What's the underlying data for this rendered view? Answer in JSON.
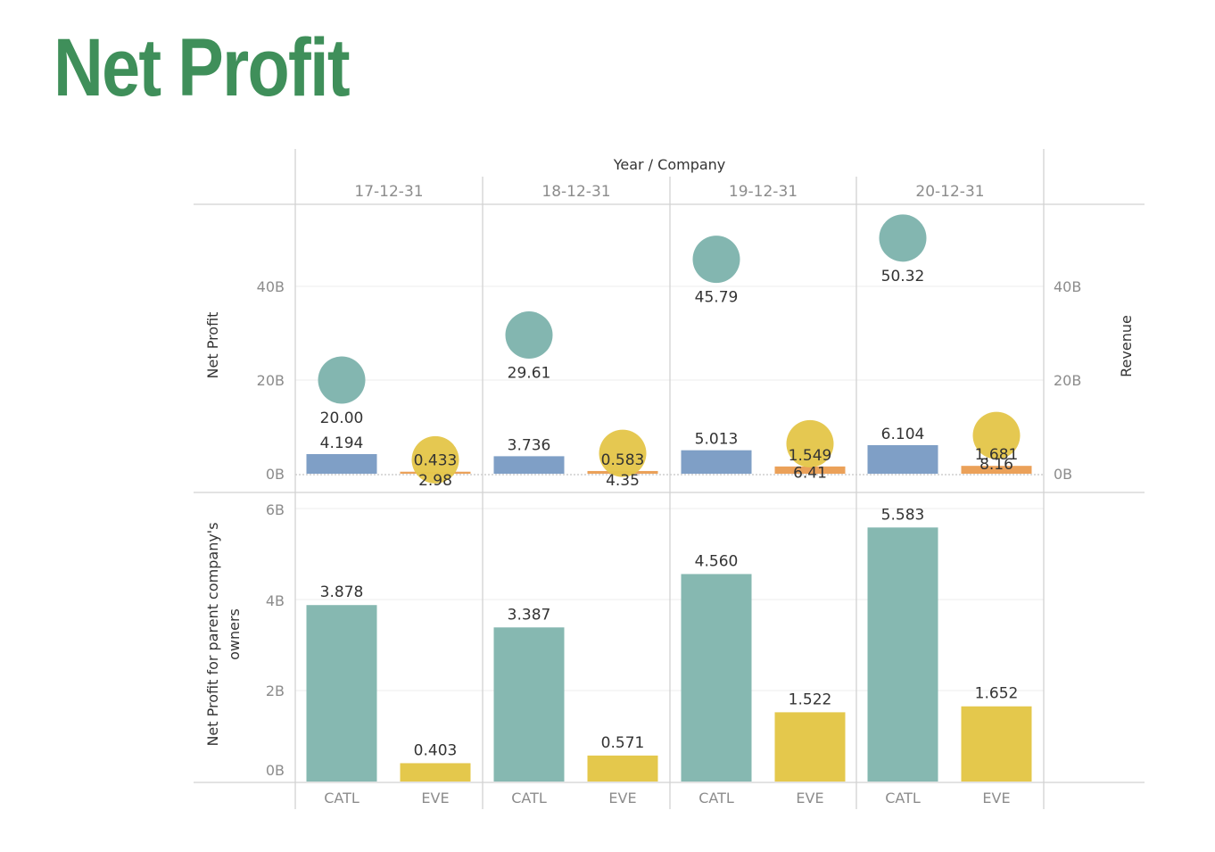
{
  "title": "Net Profit",
  "colors": {
    "title": "#3f8f5a",
    "catl_bar": "#7f9fc6",
    "eve_bar": "#eba159",
    "catl_circle": "#7fb4ad",
    "eve_circle": "#e4c64b",
    "catl_bottom": "#86b8b1",
    "eve_bottom": "#e4c84c",
    "grid": "#d2d2d2"
  },
  "chart_data": {
    "type": "bar",
    "header_title": "Year / Company",
    "years": [
      "17-12-31",
      "18-12-31",
      "19-12-31",
      "20-12-31"
    ],
    "companies": [
      "CATL",
      "EVE"
    ],
    "top_panel": {
      "ylabel_left": "Net Profit",
      "ylabel_right": "Revenue",
      "yticks_left": [
        "0B",
        "20B",
        "40B"
      ],
      "yticks_right": [
        "0B",
        "20B",
        "40B"
      ],
      "ylim": [
        0,
        55
      ],
      "bars": {
        "unit": "B",
        "series": [
          {
            "company": "CATL",
            "values": [
              4.194,
              3.736,
              5.013,
              6.104
            ],
            "labels": [
              "4.194",
              "3.736",
              "5.013",
              "6.104"
            ]
          },
          {
            "company": "EVE",
            "values": [
              0.433,
              0.583,
              1.549,
              1.681
            ],
            "labels": [
              "0.433",
              "0.583",
              "1.549",
              "1.681"
            ]
          }
        ]
      },
      "circles": {
        "unit": "B",
        "series": [
          {
            "company": "CATL",
            "values": [
              20.0,
              29.61,
              45.79,
              50.32
            ],
            "labels": [
              "20.00",
              "29.61",
              "45.79",
              "50.32"
            ]
          },
          {
            "company": "EVE",
            "values": [
              2.98,
              4.35,
              6.41,
              8.16
            ],
            "labels": [
              "2.98",
              "4.35",
              "6.41",
              "8.16"
            ]
          }
        ]
      }
    },
    "bottom_panel": {
      "ylabel": "Net Profit for parent company's owners",
      "yticks": [
        "0B",
        "2B",
        "4B",
        "6B"
      ],
      "ylim": [
        0,
        6
      ],
      "series": [
        {
          "company": "CATL",
          "values": [
            3.878,
            3.387,
            4.56,
            5.583
          ],
          "labels": [
            "3.878",
            "3.387",
            "4.560",
            "5.583"
          ]
        },
        {
          "company": "EVE",
          "values": [
            0.403,
            0.571,
            1.522,
            1.652
          ],
          "labels": [
            "0.403",
            "0.571",
            "1.522",
            "1.652"
          ]
        }
      ]
    }
  }
}
